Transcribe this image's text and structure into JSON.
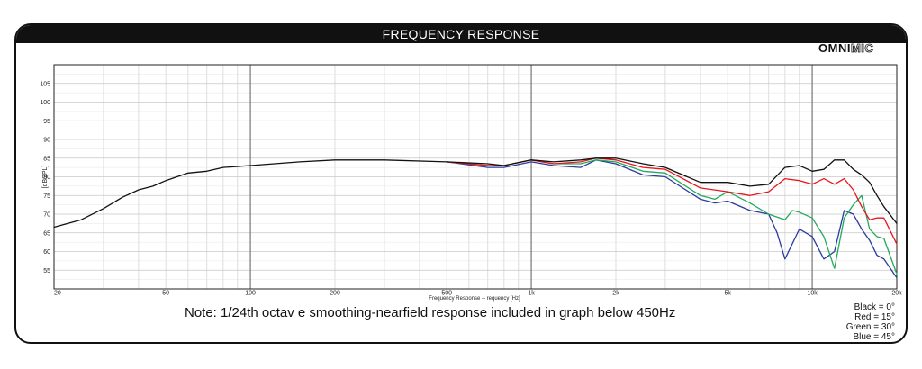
{
  "header": {
    "title": "FREQUENCY RESPONSE"
  },
  "brand": {
    "bold": "OMNI",
    "light": "MIC"
  },
  "note": "Note: 1/24th octav e smoothing-nearfield response included in graph below 450Hz",
  "chart_data": {
    "type": "line",
    "title": "FREQUENCY RESPONSE",
    "xlabel": "Frequency Response -- requency [Hz]",
    "ylabel": "[dBSPL]",
    "xscale": "log",
    "xlim": [
      20,
      20000
    ],
    "ylim": [
      50,
      110
    ],
    "grid": true,
    "xticks": [
      {
        "v": 20,
        "label": "20"
      },
      {
        "v": 50,
        "label": "50"
      },
      {
        "v": 100,
        "label": "100"
      },
      {
        "v": 200,
        "label": "200"
      },
      {
        "v": 500,
        "label": "500"
      },
      {
        "v": 1000,
        "label": "1k"
      },
      {
        "v": 2000,
        "label": "2k"
      },
      {
        "v": 5000,
        "label": "5k"
      },
      {
        "v": 10000,
        "label": "10k"
      },
      {
        "v": 20000,
        "label": "20k"
      }
    ],
    "yticks": [
      55,
      60,
      65,
      70,
      75,
      80,
      85,
      90,
      95,
      100,
      105
    ],
    "legend_position": "bottom-right",
    "series": [
      {
        "name": "Black = 0°",
        "color": "#111111",
        "x": [
          20,
          25,
          30,
          35,
          40,
          45,
          50,
          60,
          70,
          80,
          100,
          150,
          200,
          300,
          500,
          700,
          800,
          1000,
          1200,
          1500,
          1700,
          2000,
          2500,
          3000,
          4000,
          5000,
          6000,
          7000,
          8000,
          9000,
          10000,
          11000,
          12000,
          13000,
          14000,
          15000,
          16000,
          17000,
          18000,
          20000
        ],
        "y": [
          66.5,
          68.5,
          71.5,
          74.5,
          76.5,
          77.5,
          79,
          81,
          81.5,
          82.5,
          83,
          84,
          84.5,
          84.5,
          84,
          83.5,
          83,
          84.5,
          84,
          84.5,
          85,
          85,
          83.5,
          82.5,
          78.5,
          78.5,
          77.5,
          78,
          82.5,
          83,
          81.5,
          82,
          84.5,
          84.5,
          82,
          80.5,
          78.5,
          75,
          72,
          67.5
        ]
      },
      {
        "name": "Red = 15°",
        "color": "#e8141c",
        "x": [
          500,
          700,
          800,
          1000,
          1200,
          1500,
          1700,
          2000,
          2500,
          3000,
          4000,
          5000,
          6000,
          7000,
          8000,
          9000,
          10000,
          11000,
          12000,
          13000,
          14000,
          15000,
          16000,
          17000,
          18000,
          20000
        ],
        "y": [
          84,
          83,
          83,
          84.5,
          83.5,
          84,
          85,
          84.5,
          82.5,
          82,
          77,
          76,
          75,
          76,
          79.5,
          79,
          78,
          79.5,
          78,
          79.5,
          76.5,
          72,
          68.5,
          69,
          69,
          62
        ]
      },
      {
        "name": "Green = 30°",
        "color": "#22aa5c",
        "x": [
          500,
          700,
          800,
          1000,
          1200,
          1500,
          1700,
          2000,
          2500,
          3000,
          4000,
          4500,
          5000,
          6000,
          7000,
          8000,
          8500,
          9000,
          10000,
          11000,
          12000,
          13000,
          14000,
          15000,
          16000,
          17000,
          18000,
          20000
        ],
        "y": [
          84,
          83,
          83,
          84.5,
          83.5,
          83.5,
          84.5,
          84,
          81.5,
          81,
          75,
          74,
          76,
          73,
          70,
          68.5,
          71,
          70.5,
          69,
          64,
          55.5,
          69,
          72.5,
          75,
          66,
          64,
          63.5,
          54
        ]
      },
      {
        "name": "Blue = 45°",
        "color": "#2c3b9c",
        "x": [
          500,
          700,
          800,
          1000,
          1200,
          1500,
          1700,
          2000,
          2500,
          3000,
          4000,
          4500,
          5000,
          6000,
          7000,
          7500,
          8000,
          9000,
          10000,
          11000,
          12000,
          13000,
          14000,
          15000,
          16000,
          17000,
          18000,
          20000
        ],
        "y": [
          84,
          82.5,
          82.5,
          84,
          83,
          82.5,
          84.5,
          83.5,
          80.5,
          80,
          74,
          73,
          73.5,
          71,
          70,
          65,
          58,
          66,
          64,
          58,
          60,
          71,
          70,
          66,
          63,
          59,
          58,
          53
        ]
      }
    ]
  }
}
